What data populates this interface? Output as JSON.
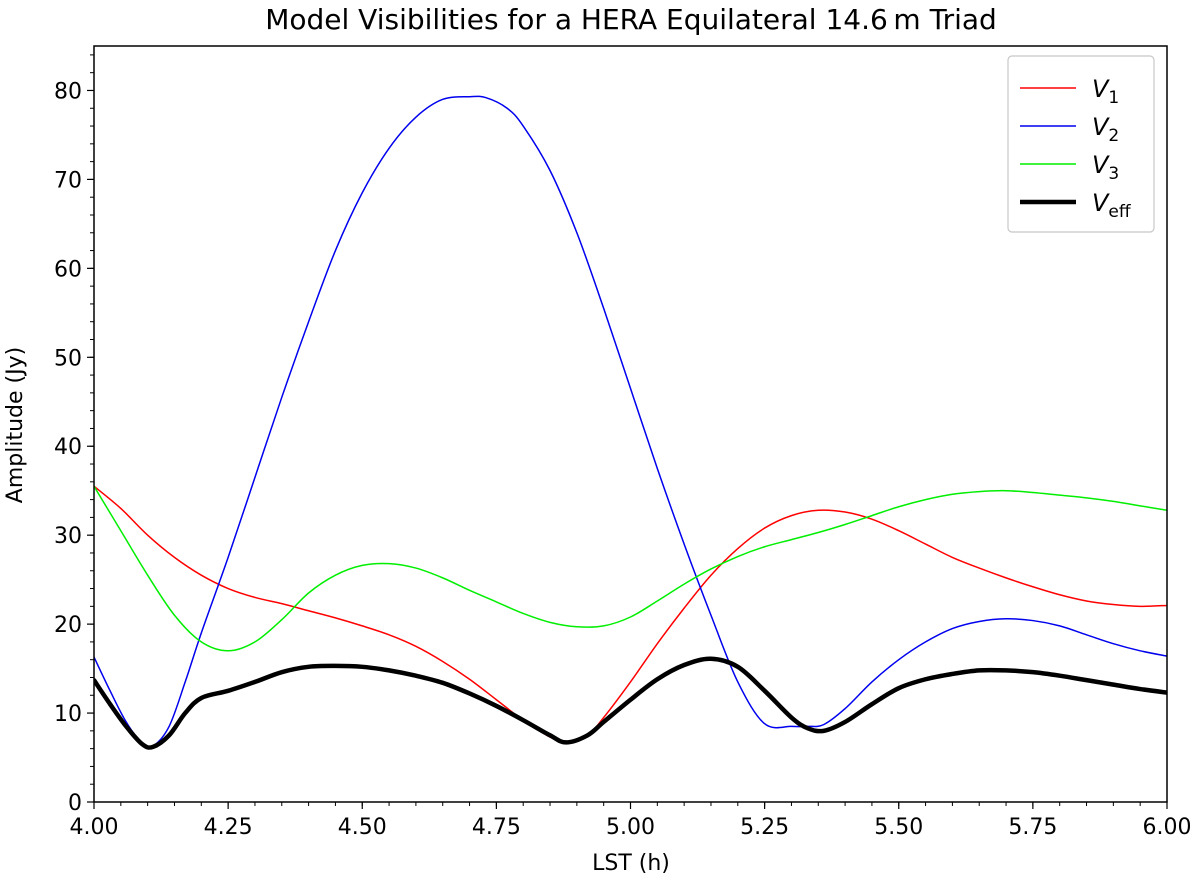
{
  "chart_data": {
    "type": "line",
    "title": "Model Visibilities for a HERA Equilateral 14.6 m Triad",
    "xlabel": "LST (h)",
    "ylabel": "Amplitude (Jy)",
    "xlim": [
      4.0,
      6.0
    ],
    "ylim": [
      0,
      85
    ],
    "xticks": [
      4.0,
      4.25,
      4.5,
      4.75,
      5.0,
      5.25,
      5.5,
      5.75,
      6.0
    ],
    "xtick_labels": [
      "4.00",
      "4.25",
      "4.50",
      "4.75",
      "5.00",
      "5.25",
      "5.50",
      "5.75",
      "6.00"
    ],
    "yticks": [
      0,
      10,
      20,
      30,
      40,
      50,
      60,
      70,
      80
    ],
    "ytick_labels": [
      "0",
      "10",
      "20",
      "30",
      "40",
      "50",
      "60",
      "70",
      "80"
    ],
    "grid": false,
    "legend_position": "top-right",
    "series": [
      {
        "name": "V",
        "sub": "1",
        "color": "#ff0000",
        "width": 1.5,
        "x": [
          4.0,
          4.05,
          4.1,
          4.15,
          4.2,
          4.25,
          4.3,
          4.35,
          4.4,
          4.45,
          4.5,
          4.55,
          4.6,
          4.65,
          4.7,
          4.75,
          4.8,
          4.85,
          4.88,
          4.92,
          4.95,
          5.0,
          5.05,
          5.1,
          5.15,
          5.2,
          5.25,
          5.3,
          5.35,
          5.4,
          5.45,
          5.5,
          5.55,
          5.6,
          5.65,
          5.7,
          5.75,
          5.8,
          5.85,
          5.9,
          5.95,
          6.0
        ],
        "y": [
          35.5,
          33.0,
          30.0,
          27.5,
          25.5,
          24.0,
          23.0,
          22.3,
          21.5,
          20.7,
          19.8,
          18.8,
          17.5,
          15.8,
          13.8,
          11.5,
          9.2,
          7.3,
          6.7,
          7.5,
          9.5,
          13.5,
          17.8,
          21.8,
          25.5,
          28.5,
          30.8,
          32.2,
          32.8,
          32.6,
          31.8,
          30.5,
          29.0,
          27.5,
          26.3,
          25.2,
          24.2,
          23.3,
          22.6,
          22.2,
          22.0,
          22.1
        ]
      },
      {
        "name": "V",
        "sub": "2",
        "color": "#0000ee",
        "width": 1.5,
        "x": [
          4.0,
          4.03,
          4.06,
          4.09,
          4.11,
          4.14,
          4.17,
          4.2,
          4.25,
          4.3,
          4.35,
          4.4,
          4.45,
          4.5,
          4.55,
          4.6,
          4.65,
          4.7,
          4.73,
          4.77,
          4.8,
          4.85,
          4.9,
          4.95,
          5.0,
          5.05,
          5.1,
          5.15,
          5.2,
          5.25,
          5.3,
          5.33,
          5.36,
          5.4,
          5.45,
          5.5,
          5.55,
          5.6,
          5.65,
          5.7,
          5.75,
          5.8,
          5.85,
          5.9,
          5.95,
          6.0
        ],
        "y": [
          16.3,
          12.5,
          9.0,
          6.6,
          6.3,
          8.5,
          13.5,
          19.0,
          27.5,
          36.5,
          45.5,
          54.0,
          62.0,
          68.5,
          73.5,
          77.0,
          79.0,
          79.3,
          79.2,
          78.0,
          76.0,
          71.0,
          64.0,
          55.5,
          46.5,
          37.5,
          29.0,
          21.0,
          13.5,
          8.8,
          8.5,
          8.5,
          8.7,
          10.5,
          13.5,
          16.0,
          18.0,
          19.5,
          20.3,
          20.6,
          20.4,
          19.8,
          18.8,
          17.8,
          17.0,
          16.4
        ]
      },
      {
        "name": "V",
        "sub": "3",
        "color": "#00ee00",
        "width": 1.5,
        "x": [
          4.0,
          4.05,
          4.1,
          4.15,
          4.2,
          4.25,
          4.3,
          4.35,
          4.4,
          4.45,
          4.5,
          4.55,
          4.6,
          4.65,
          4.7,
          4.75,
          4.8,
          4.85,
          4.9,
          4.95,
          5.0,
          5.05,
          5.1,
          5.15,
          5.2,
          5.25,
          5.3,
          5.35,
          5.4,
          5.45,
          5.5,
          5.55,
          5.6,
          5.65,
          5.7,
          5.75,
          5.8,
          5.85,
          5.9,
          5.95,
          6.0
        ],
        "y": [
          35.5,
          30.5,
          25.5,
          21.0,
          18.0,
          17.0,
          18.0,
          20.5,
          23.5,
          25.5,
          26.6,
          26.8,
          26.3,
          25.2,
          23.8,
          22.5,
          21.2,
          20.2,
          19.7,
          19.8,
          20.8,
          22.6,
          24.5,
          26.2,
          27.6,
          28.7,
          29.5,
          30.3,
          31.2,
          32.2,
          33.2,
          34.0,
          34.6,
          34.9,
          35.0,
          34.8,
          34.5,
          34.2,
          33.8,
          33.3,
          32.8
        ]
      },
      {
        "name": "V",
        "sub": "eff",
        "color": "#000000",
        "width": 4.5,
        "x": [
          4.0,
          4.03,
          4.06,
          4.09,
          4.11,
          4.14,
          4.17,
          4.2,
          4.25,
          4.3,
          4.35,
          4.4,
          4.45,
          4.5,
          4.55,
          4.6,
          4.65,
          4.7,
          4.75,
          4.8,
          4.85,
          4.88,
          4.92,
          4.95,
          5.0,
          5.05,
          5.1,
          5.15,
          5.2,
          5.25,
          5.3,
          5.33,
          5.36,
          5.4,
          5.45,
          5.5,
          5.55,
          5.6,
          5.65,
          5.7,
          5.75,
          5.8,
          5.85,
          5.9,
          5.95,
          6.0
        ],
        "y": [
          13.7,
          11.0,
          8.5,
          6.5,
          6.2,
          7.5,
          10.0,
          11.7,
          12.5,
          13.5,
          14.6,
          15.2,
          15.3,
          15.2,
          14.8,
          14.2,
          13.4,
          12.2,
          10.8,
          9.2,
          7.5,
          6.7,
          7.5,
          9.0,
          11.5,
          13.8,
          15.4,
          16.1,
          15.2,
          12.5,
          9.5,
          8.3,
          8.0,
          9.0,
          11.0,
          12.8,
          13.8,
          14.4,
          14.8,
          14.8,
          14.6,
          14.2,
          13.7,
          13.2,
          12.7,
          12.3
        ]
      }
    ]
  }
}
